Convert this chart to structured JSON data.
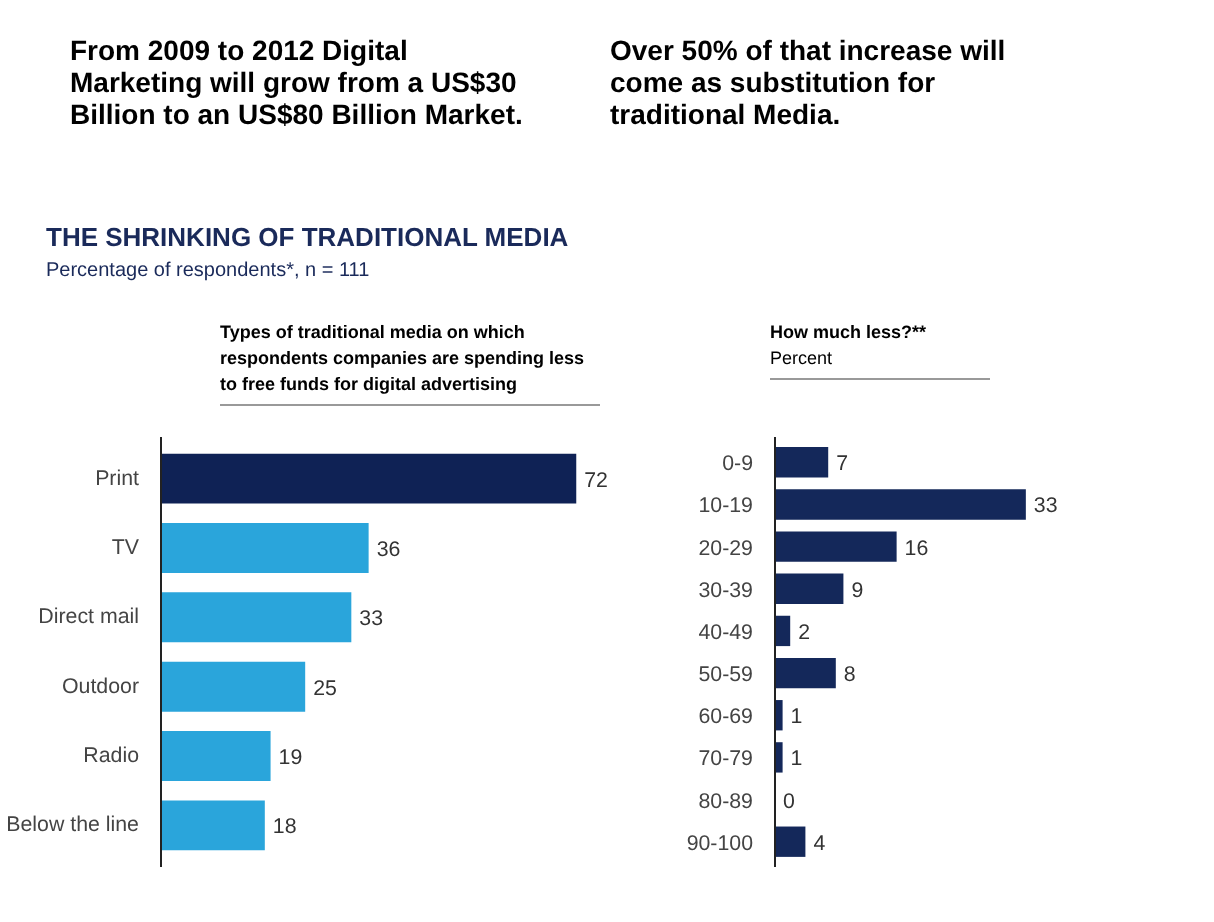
{
  "chart_data": [
    {
      "type": "bar",
      "orientation": "horizontal",
      "title": "THE SHRINKING OF TRADITIONAL MEDIA",
      "subtitle": "Percentage of respondents*, n = 111",
      "annotations": [
        "From 2009 to 2012 Digital Marketing will grow from a US$30 Billion to an US$80 Billion Market.",
        "Over 50% of that increase will come as substitution for traditional Media.",
        "Types of traditional media on which respondents companies are spending less to free funds for digital advertising"
      ],
      "categories": [
        "Print",
        "TV",
        "Direct mail",
        "Outdoor",
        "Radio",
        "Below the line"
      ],
      "values": [
        72,
        36,
        33,
        25,
        19,
        18
      ],
      "colors": [
        "#0f2255",
        "#2aa5db",
        "#2aa5db",
        "#2aa5db",
        "#2aa5db",
        "#2aa5db"
      ],
      "data_labels": true,
      "grid": false
    },
    {
      "type": "bar",
      "orientation": "horizontal",
      "title": "How much less?**",
      "subtitle": "Percent",
      "categories": [
        "0-9",
        "10-19",
        "20-29",
        "30-39",
        "40-49",
        "50-59",
        "60-69",
        "70-79",
        "80-89",
        "90-100"
      ],
      "values": [
        7,
        33,
        16,
        9,
        2,
        8,
        1,
        1,
        0,
        4
      ],
      "color": "#14285a",
      "data_labels": true,
      "grid": false
    }
  ]
}
